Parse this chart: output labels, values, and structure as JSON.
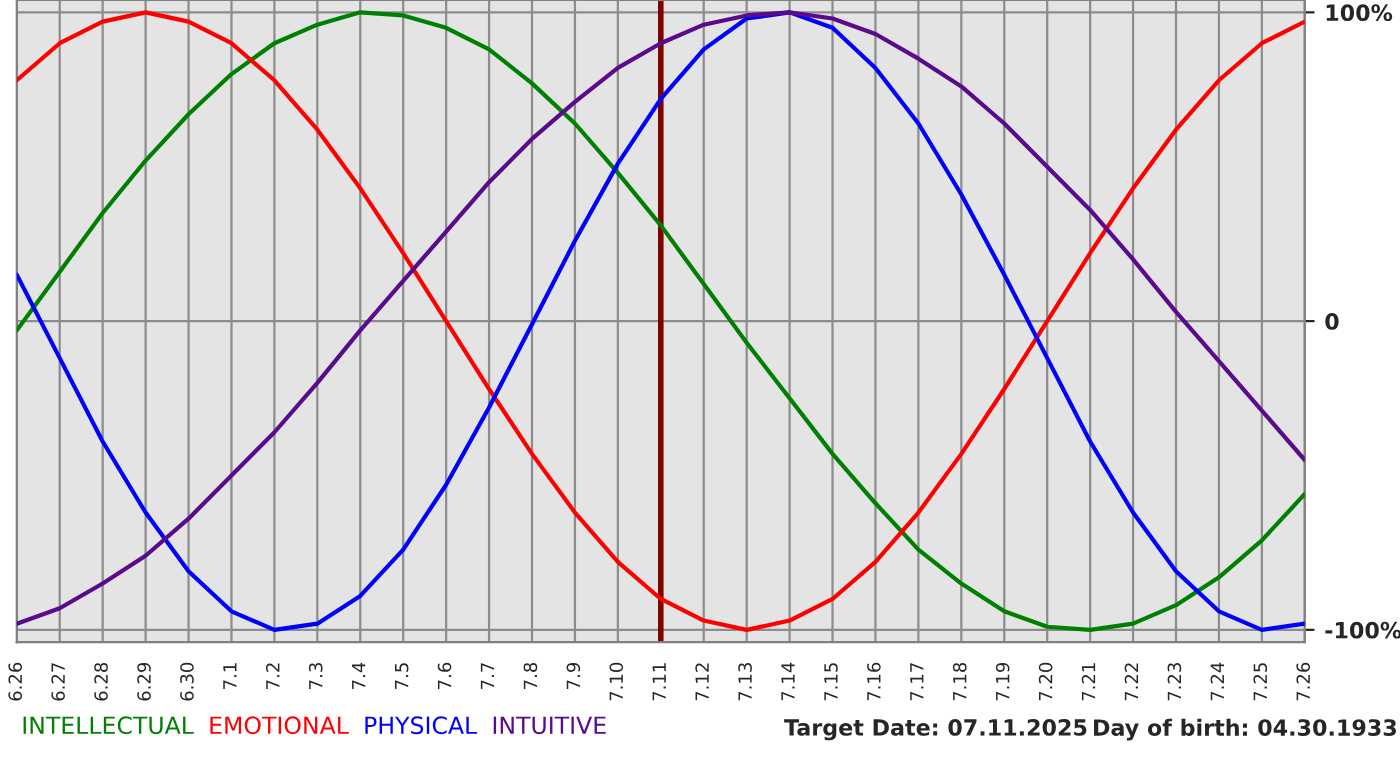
{
  "chart_data": {
    "type": "line",
    "categories": [
      "6.26",
      "6.27",
      "6.28",
      "6.29",
      "6.30",
      "7.1",
      "7.2",
      "7.3",
      "7.4",
      "7.5",
      "7.6",
      "7.7",
      "7.8",
      "7.9",
      "7.10",
      "7.11",
      "7.12",
      "7.13",
      "7.14",
      "7.15",
      "7.16",
      "7.17",
      "7.18",
      "7.19",
      "7.20",
      "7.21",
      "7.22",
      "7.23",
      "7.24",
      "7.25",
      "7.26"
    ],
    "series": [
      {
        "name": "INTELLECTUAL",
        "color": "#008000",
        "values": [
          -3,
          16,
          35,
          52,
          67,
          80,
          90,
          96,
          100,
          99,
          95,
          88,
          77,
          64,
          48,
          31,
          12,
          -7,
          -25,
          -43,
          -59,
          -74,
          -85,
          -94,
          -99,
          -100,
          -98,
          -92,
          -83,
          -71,
          -56
        ]
      },
      {
        "name": "EMOTIONAL",
        "color": "#ff0000",
        "values": [
          78,
          90,
          97,
          100,
          97,
          90,
          78,
          62,
          43,
          22,
          0,
          -22,
          -43,
          -62,
          -78,
          -90,
          -97,
          -100,
          -97,
          -90,
          -78,
          -62,
          -43,
          -22,
          0,
          22,
          43,
          62,
          78,
          90,
          97
        ]
      },
      {
        "name": "PHYSICAL",
        "color": "#0000ff",
        "values": [
          15,
          -12,
          -39,
          -62,
          -81,
          -94,
          -100,
          -98,
          -89,
          -74,
          -53,
          -28,
          -1,
          26,
          51,
          72,
          88,
          98,
          100,
          95,
          82,
          64,
          41,
          15,
          -12,
          -39,
          -62,
          -81,
          -94,
          -100,
          -98
        ]
      },
      {
        "name": "INTUITIVE",
        "color": "#5a0a8c",
        "values": [
          -98,
          -93,
          -85,
          -76,
          -64,
          -50,
          -36,
          -20,
          -3,
          13,
          29,
          45,
          59,
          71,
          82,
          90,
          96,
          99,
          100,
          98,
          93,
          85,
          76,
          64,
          50,
          36,
          20,
          3,
          -13,
          -29,
          -45
        ]
      }
    ],
    "ylim": [
      -104,
      104
    ],
    "yticks": [
      {
        "value": 100,
        "label": "100%"
      },
      0,
      {
        "value": -100,
        "label": "-100%"
      }
    ],
    "ref_lines": [
      {
        "axis": "x",
        "value": "7.11",
        "color": "#800000"
      }
    ],
    "annotations": [
      "Target Date: 07.11.2025",
      "Day of birth: 04.30.1933"
    ],
    "grid": true,
    "legend": "bottom",
    "line_style": "solid",
    "marker": "none"
  }
}
